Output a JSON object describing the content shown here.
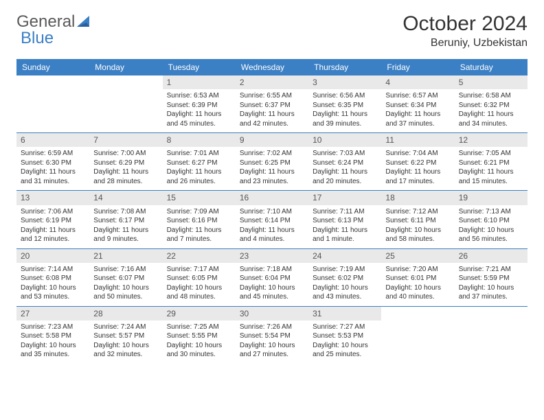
{
  "brand": {
    "part1": "General",
    "part2": "Blue"
  },
  "title": "October 2024",
  "location": "Beruniy, Uzbekistan",
  "colors": {
    "header_bg": "#3b7fc4",
    "header_text": "#ffffff",
    "daynum_bg": "#e9e9e9",
    "text": "#333333",
    "row_border": "#3b7fc4"
  },
  "weekdays": [
    "Sunday",
    "Monday",
    "Tuesday",
    "Wednesday",
    "Thursday",
    "Friday",
    "Saturday"
  ],
  "weeks": [
    [
      {
        "empty": true
      },
      {
        "empty": true
      },
      {
        "day": "1",
        "sunrise": "Sunrise: 6:53 AM",
        "sunset": "Sunset: 6:39 PM",
        "daylight": "Daylight: 11 hours and 45 minutes."
      },
      {
        "day": "2",
        "sunrise": "Sunrise: 6:55 AM",
        "sunset": "Sunset: 6:37 PM",
        "daylight": "Daylight: 11 hours and 42 minutes."
      },
      {
        "day": "3",
        "sunrise": "Sunrise: 6:56 AM",
        "sunset": "Sunset: 6:35 PM",
        "daylight": "Daylight: 11 hours and 39 minutes."
      },
      {
        "day": "4",
        "sunrise": "Sunrise: 6:57 AM",
        "sunset": "Sunset: 6:34 PM",
        "daylight": "Daylight: 11 hours and 37 minutes."
      },
      {
        "day": "5",
        "sunrise": "Sunrise: 6:58 AM",
        "sunset": "Sunset: 6:32 PM",
        "daylight": "Daylight: 11 hours and 34 minutes."
      }
    ],
    [
      {
        "day": "6",
        "sunrise": "Sunrise: 6:59 AM",
        "sunset": "Sunset: 6:30 PM",
        "daylight": "Daylight: 11 hours and 31 minutes."
      },
      {
        "day": "7",
        "sunrise": "Sunrise: 7:00 AM",
        "sunset": "Sunset: 6:29 PM",
        "daylight": "Daylight: 11 hours and 28 minutes."
      },
      {
        "day": "8",
        "sunrise": "Sunrise: 7:01 AM",
        "sunset": "Sunset: 6:27 PM",
        "daylight": "Daylight: 11 hours and 26 minutes."
      },
      {
        "day": "9",
        "sunrise": "Sunrise: 7:02 AM",
        "sunset": "Sunset: 6:25 PM",
        "daylight": "Daylight: 11 hours and 23 minutes."
      },
      {
        "day": "10",
        "sunrise": "Sunrise: 7:03 AM",
        "sunset": "Sunset: 6:24 PM",
        "daylight": "Daylight: 11 hours and 20 minutes."
      },
      {
        "day": "11",
        "sunrise": "Sunrise: 7:04 AM",
        "sunset": "Sunset: 6:22 PM",
        "daylight": "Daylight: 11 hours and 17 minutes."
      },
      {
        "day": "12",
        "sunrise": "Sunrise: 7:05 AM",
        "sunset": "Sunset: 6:21 PM",
        "daylight": "Daylight: 11 hours and 15 minutes."
      }
    ],
    [
      {
        "day": "13",
        "sunrise": "Sunrise: 7:06 AM",
        "sunset": "Sunset: 6:19 PM",
        "daylight": "Daylight: 11 hours and 12 minutes."
      },
      {
        "day": "14",
        "sunrise": "Sunrise: 7:08 AM",
        "sunset": "Sunset: 6:17 PM",
        "daylight": "Daylight: 11 hours and 9 minutes."
      },
      {
        "day": "15",
        "sunrise": "Sunrise: 7:09 AM",
        "sunset": "Sunset: 6:16 PM",
        "daylight": "Daylight: 11 hours and 7 minutes."
      },
      {
        "day": "16",
        "sunrise": "Sunrise: 7:10 AM",
        "sunset": "Sunset: 6:14 PM",
        "daylight": "Daylight: 11 hours and 4 minutes."
      },
      {
        "day": "17",
        "sunrise": "Sunrise: 7:11 AM",
        "sunset": "Sunset: 6:13 PM",
        "daylight": "Daylight: 11 hours and 1 minute."
      },
      {
        "day": "18",
        "sunrise": "Sunrise: 7:12 AM",
        "sunset": "Sunset: 6:11 PM",
        "daylight": "Daylight: 10 hours and 58 minutes."
      },
      {
        "day": "19",
        "sunrise": "Sunrise: 7:13 AM",
        "sunset": "Sunset: 6:10 PM",
        "daylight": "Daylight: 10 hours and 56 minutes."
      }
    ],
    [
      {
        "day": "20",
        "sunrise": "Sunrise: 7:14 AM",
        "sunset": "Sunset: 6:08 PM",
        "daylight": "Daylight: 10 hours and 53 minutes."
      },
      {
        "day": "21",
        "sunrise": "Sunrise: 7:16 AM",
        "sunset": "Sunset: 6:07 PM",
        "daylight": "Daylight: 10 hours and 50 minutes."
      },
      {
        "day": "22",
        "sunrise": "Sunrise: 7:17 AM",
        "sunset": "Sunset: 6:05 PM",
        "daylight": "Daylight: 10 hours and 48 minutes."
      },
      {
        "day": "23",
        "sunrise": "Sunrise: 7:18 AM",
        "sunset": "Sunset: 6:04 PM",
        "daylight": "Daylight: 10 hours and 45 minutes."
      },
      {
        "day": "24",
        "sunrise": "Sunrise: 7:19 AM",
        "sunset": "Sunset: 6:02 PM",
        "daylight": "Daylight: 10 hours and 43 minutes."
      },
      {
        "day": "25",
        "sunrise": "Sunrise: 7:20 AM",
        "sunset": "Sunset: 6:01 PM",
        "daylight": "Daylight: 10 hours and 40 minutes."
      },
      {
        "day": "26",
        "sunrise": "Sunrise: 7:21 AM",
        "sunset": "Sunset: 5:59 PM",
        "daylight": "Daylight: 10 hours and 37 minutes."
      }
    ],
    [
      {
        "day": "27",
        "sunrise": "Sunrise: 7:23 AM",
        "sunset": "Sunset: 5:58 PM",
        "daylight": "Daylight: 10 hours and 35 minutes."
      },
      {
        "day": "28",
        "sunrise": "Sunrise: 7:24 AM",
        "sunset": "Sunset: 5:57 PM",
        "daylight": "Daylight: 10 hours and 32 minutes."
      },
      {
        "day": "29",
        "sunrise": "Sunrise: 7:25 AM",
        "sunset": "Sunset: 5:55 PM",
        "daylight": "Daylight: 10 hours and 30 minutes."
      },
      {
        "day": "30",
        "sunrise": "Sunrise: 7:26 AM",
        "sunset": "Sunset: 5:54 PM",
        "daylight": "Daylight: 10 hours and 27 minutes."
      },
      {
        "day": "31",
        "sunrise": "Sunrise: 7:27 AM",
        "sunset": "Sunset: 5:53 PM",
        "daylight": "Daylight: 10 hours and 25 minutes."
      },
      {
        "empty": true
      },
      {
        "empty": true
      }
    ]
  ]
}
